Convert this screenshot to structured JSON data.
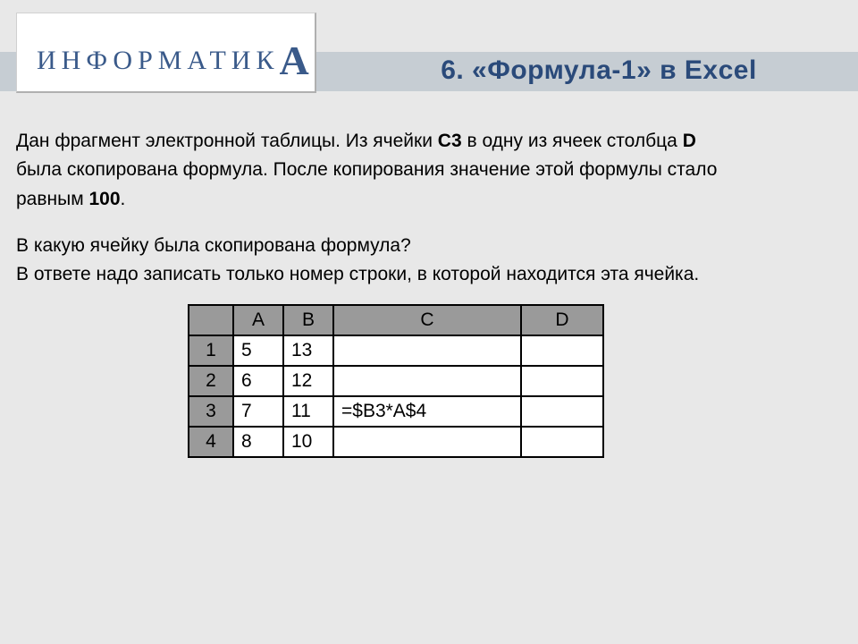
{
  "logo": {
    "text_main": "ИНФОРМАТИК",
    "text_accent": "А"
  },
  "title": "6. «Формула-1» в Excel",
  "paragraphs": {
    "p1a": "Дан фрагмент электронной таблицы. Из ячейки ",
    "p1b": "C3",
    "p1c": " в одну из ячеек столбца ",
    "p1d": "D",
    "p2a": "была скопирована формула. После копирования значение этой формулы стало",
    "p3a": "равным ",
    "p3b": "100",
    "p3c": ".",
    "q1": "В какую ячейку была скопирована формула?",
    "q2": "В ответе надо записать только номер строки, в которой находится эта ячейка."
  },
  "table": {
    "columns": [
      "A",
      "B",
      "C",
      "D"
    ],
    "row_labels": [
      "1",
      "2",
      "3",
      "4"
    ],
    "cells": {
      "r1": {
        "A": "5",
        "B": "13",
        "C": "",
        "D": ""
      },
      "r2": {
        "A": "6",
        "B": "12",
        "C": "",
        "D": ""
      },
      "r3": {
        "A": "7",
        "B": "11",
        "C": "=$B3*A$4",
        "D": ""
      },
      "r4": {
        "A": "8",
        "B": "10",
        "C": "",
        "D": ""
      }
    },
    "header_bg": "#9a9a9a",
    "cell_bg": "#ffffff",
    "border_color": "#000000",
    "font_size_pt": 16
  },
  "colors": {
    "page_bg": "#e8e8e8",
    "band_bg": "#c6cdd3",
    "logo_bg": "#ffffff",
    "logo_text": "#3a5a8a",
    "title_text": "#2a4a7a",
    "body_text": "#000000"
  }
}
